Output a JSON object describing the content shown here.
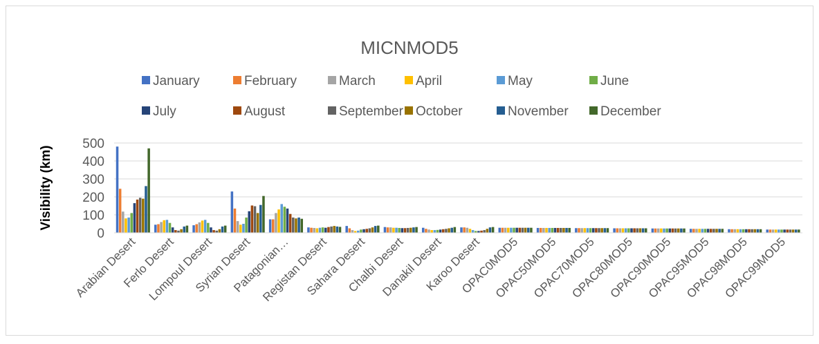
{
  "chart_data": {
    "type": "bar",
    "title": "MICNMOD5",
    "y_label": "Visibility (km)",
    "categories": [
      "Arabian Desert",
      "Ferlo Desert",
      "Lompoul Desert",
      "Syrian Desert",
      "Patagonian…",
      "Registan Desert",
      "Sahara Desert",
      "Chalbi Desert",
      "Danakil Desert",
      "Karoo Desert",
      "OPAC0MOD5",
      "OPAC50MOD5",
      "OPAC70MOD5",
      "OPAC80MOD5",
      "OPAC90MOD5",
      "OPAC95MOD5",
      "OPAC98MOD5",
      "OPAC99MOD5"
    ],
    "series": [
      {
        "name": "January",
        "color": "#4472c4",
        "values": [
          480,
          45,
          42,
          230,
          75,
          30,
          38,
          32,
          28,
          30,
          28,
          27,
          26,
          25,
          24,
          22,
          20,
          18
        ]
      },
      {
        "name": "February",
        "color": "#ed7d31",
        "values": [
          245,
          48,
          48,
          135,
          75,
          28,
          25,
          30,
          22,
          30,
          28,
          27,
          26,
          25,
          24,
          22,
          20,
          18
        ]
      },
      {
        "name": "March",
        "color": "#a5a5a5",
        "values": [
          118,
          60,
          58,
          65,
          110,
          27,
          15,
          30,
          18,
          28,
          28,
          27,
          26,
          25,
          24,
          22,
          20,
          18
        ]
      },
      {
        "name": "April",
        "color": "#ffc000",
        "values": [
          80,
          70,
          68,
          45,
          130,
          25,
          10,
          28,
          15,
          22,
          28,
          27,
          26,
          25,
          24,
          22,
          20,
          18
        ]
      },
      {
        "name": "May",
        "color": "#5b9bd5",
        "values": [
          85,
          72,
          72,
          50,
          160,
          28,
          12,
          28,
          15,
          15,
          28,
          27,
          26,
          25,
          24,
          22,
          20,
          18
        ]
      },
      {
        "name": "June",
        "color": "#70ad47",
        "values": [
          110,
          55,
          55,
          85,
          145,
          30,
          18,
          27,
          16,
          10,
          28,
          27,
          26,
          25,
          24,
          22,
          20,
          18
        ]
      },
      {
        "name": "July",
        "color": "#264478",
        "values": [
          165,
          30,
          30,
          120,
          135,
          28,
          20,
          26,
          18,
          10,
          28,
          27,
          26,
          25,
          24,
          22,
          20,
          18
        ]
      },
      {
        "name": "August",
        "color": "#9e480e",
        "values": [
          185,
          15,
          15,
          152,
          105,
          32,
          22,
          26,
          20,
          12,
          28,
          27,
          26,
          25,
          24,
          22,
          20,
          18
        ]
      },
      {
        "name": "September",
        "color": "#636363",
        "values": [
          195,
          12,
          12,
          148,
          85,
          35,
          25,
          27,
          22,
          15,
          28,
          27,
          26,
          25,
          24,
          22,
          20,
          18
        ]
      },
      {
        "name": "October",
        "color": "#997300",
        "values": [
          190,
          20,
          20,
          110,
          80,
          38,
          30,
          28,
          25,
          22,
          28,
          27,
          26,
          25,
          24,
          22,
          20,
          18
        ]
      },
      {
        "name": "November",
        "color": "#255e91",
        "values": [
          260,
          35,
          35,
          155,
          85,
          35,
          38,
          30,
          28,
          30,
          28,
          27,
          26,
          25,
          24,
          22,
          20,
          18
        ]
      },
      {
        "name": "December",
        "color": "#43682b",
        "values": [
          470,
          40,
          40,
          205,
          78,
          33,
          40,
          32,
          32,
          32,
          28,
          27,
          26,
          25,
          24,
          22,
          20,
          18
        ]
      }
    ],
    "ylim": [
      0,
      500
    ],
    "yticks": [
      0,
      100,
      200,
      300,
      400,
      500
    ],
    "grid": true,
    "legend": "top"
  }
}
